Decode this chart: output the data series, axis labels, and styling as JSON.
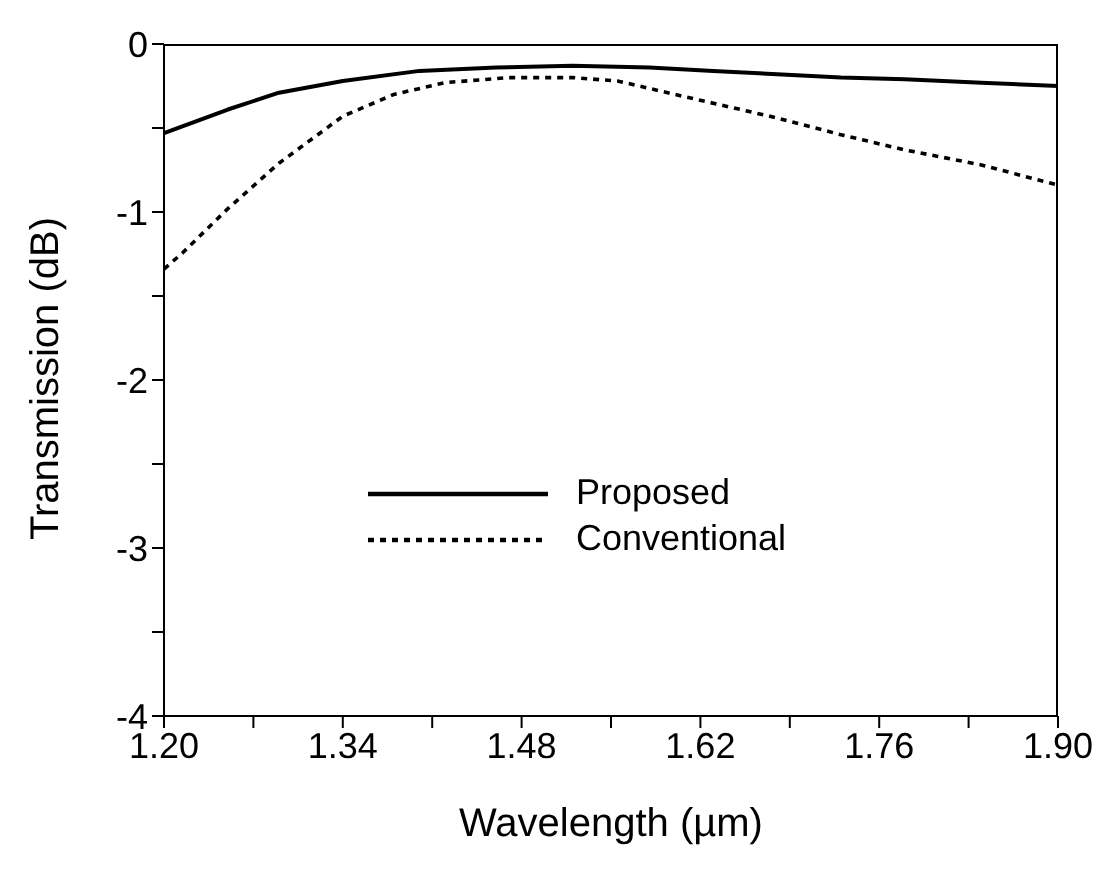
{
  "chart_data": {
    "type": "line",
    "xlabel": "Wavelength (µm)",
    "ylabel": "Transmission (dB)",
    "xlim": [
      1.2,
      1.9
    ],
    "xticks": [
      {
        "value": 1.2,
        "label": "1.20"
      },
      {
        "value": 1.27,
        "label": null
      },
      {
        "value": 1.34,
        "label": "1.34"
      },
      {
        "value": 1.41,
        "label": null
      },
      {
        "value": 1.48,
        "label": "1.48"
      },
      {
        "value": 1.55,
        "label": null
      },
      {
        "value": 1.62,
        "label": "1.62"
      },
      {
        "value": 1.69,
        "label": null
      },
      {
        "value": 1.76,
        "label": "1.76"
      },
      {
        "value": 1.83,
        "label": null
      },
      {
        "value": 1.9,
        "label": "1.90"
      }
    ],
    "ylim": [
      -4,
      0
    ],
    "yticks": [
      -4,
      {
        "value": -3.5,
        "label": null
      },
      -3,
      {
        "value": -2.5,
        "label": null
      },
      -2,
      {
        "value": -1.5,
        "label": null
      },
      -1,
      {
        "value": -0.5,
        "label": null
      },
      0
    ],
    "legend": "center",
    "marker": "none",
    "series": [
      {
        "name": "Proposed",
        "color": "#000000",
        "line_style": "solid",
        "x": [
          1.2,
          1.25,
          1.29,
          1.34,
          1.4,
          1.46,
          1.52,
          1.58,
          1.63,
          1.68,
          1.73,
          1.78,
          1.84,
          1.9
        ],
        "values": [
          -0.53,
          -0.39,
          -0.29,
          -0.22,
          -0.16,
          -0.14,
          -0.13,
          -0.14,
          -0.16,
          -0.18,
          -0.2,
          -0.21,
          -0.23,
          -0.25
        ]
      },
      {
        "name": "Conventional",
        "color": "#000000",
        "line_style": "dotted",
        "x": [
          1.2,
          1.215,
          1.25,
          1.29,
          1.34,
          1.38,
          1.42,
          1.47,
          1.52,
          1.555,
          1.6,
          1.68,
          1.73,
          1.78,
          1.84,
          1.9
        ],
        "values": [
          -1.34,
          -1.24,
          -0.98,
          -0.71,
          -0.43,
          -0.3,
          -0.23,
          -0.2,
          -0.2,
          -0.22,
          -0.3,
          -0.44,
          -0.54,
          -0.63,
          -0.72,
          -0.84
        ]
      }
    ]
  }
}
